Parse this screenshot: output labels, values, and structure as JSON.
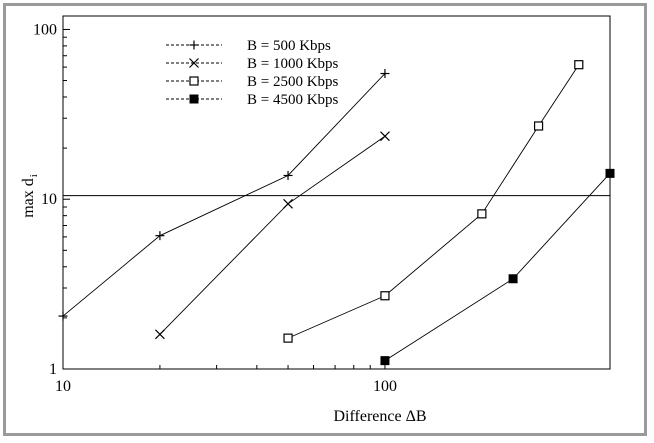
{
  "chart_data": {
    "type": "line",
    "title": "",
    "xlabel": "Difference ΔB",
    "ylabel": "max d",
    "ylabel_sub": "i",
    "xscale": "log",
    "yscale": "log",
    "xlim": [
      10,
      500
    ],
    "ylim": [
      1,
      120
    ],
    "xticks": [
      10,
      100
    ],
    "xtick_labels": [
      "10",
      "100"
    ],
    "yticks": [
      1,
      10,
      100
    ],
    "ytick_labels": [
      "1",
      "10",
      "100"
    ],
    "grid": false,
    "legend_position": "top-left",
    "reference_line": {
      "y": 10.5
    },
    "series": [
      {
        "name": "B = 500 Kbps",
        "marker": "plus",
        "x": [
          10,
          20,
          50,
          100
        ],
        "y": [
          2.05,
          6.1,
          13.8,
          55
        ]
      },
      {
        "name": "B = 1000 Kbps",
        "marker": "cross",
        "x": [
          20,
          50,
          100
        ],
        "y": [
          1.6,
          9.4,
          23.5
        ]
      },
      {
        "name": "B = 2500 Kbps",
        "marker": "open-square",
        "x": [
          50,
          100,
          200,
          300,
          400
        ],
        "y": [
          1.52,
          2.7,
          8.2,
          27,
          62
        ]
      },
      {
        "name": "B = 4500 Kbps",
        "marker": "filled-square",
        "x": [
          100,
          250,
          500
        ],
        "y": [
          1.12,
          3.4,
          14.2
        ]
      }
    ]
  }
}
